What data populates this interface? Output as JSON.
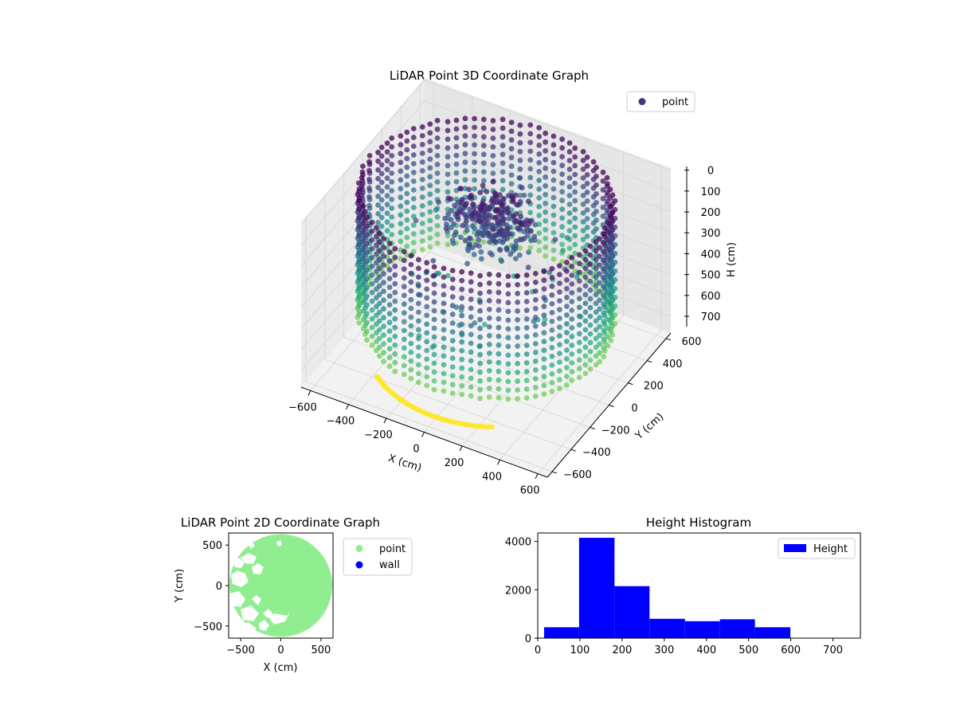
{
  "chart_data": [
    {
      "type": "scatter",
      "projection": "3d",
      "title": "LiDAR Point 3D Coordinate Graph",
      "xlabel": "X (cm)",
      "ylabel": "Y (cm)",
      "zlabel": "H (cm)",
      "xlim": [
        -650,
        650
      ],
      "ylim": [
        -650,
        650
      ],
      "zlim": [
        780,
        -10
      ],
      "z_inverted": true,
      "x_ticks": [
        "−600",
        "−400",
        "−200",
        "0",
        "200",
        "400",
        "600"
      ],
      "y_ticks": [
        "−600",
        "−400",
        "−200",
        "0",
        "200",
        "400",
        "600"
      ],
      "z_ticks": [
        "0",
        "100",
        "200",
        "300",
        "400",
        "500",
        "600",
        "700"
      ],
      "legend": [
        "point"
      ],
      "legend_position": "top-right",
      "colormap": "viridis",
      "grid": true,
      "structure": {
        "outer_wall_radius": 600,
        "wall_height_range": [
          0,
          600
        ],
        "floor_arc_height": 750,
        "inner_cluster_center": [
          0,
          50
        ],
        "inner_cluster_height": [
          50,
          250
        ]
      },
      "colors": {
        "legend_marker": "#46327e"
      }
    },
    {
      "type": "scatter",
      "title": "LiDAR Point 2D Coordinate Graph",
      "xlabel": "X (cm)",
      "ylabel": "Y (cm)",
      "xlim": [
        -650,
        650
      ],
      "ylim": [
        -650,
        650
      ],
      "x_ticks": [
        "−500",
        "0",
        "500"
      ],
      "y_ticks": [
        "−500",
        "0",
        "500"
      ],
      "series": [
        {
          "name": "point",
          "color": "#90ee90"
        },
        {
          "name": "wall",
          "color": "#0000ff"
        }
      ],
      "disk_radius": 640,
      "legend_position": "outside-right"
    },
    {
      "type": "bar",
      "title": "Height Histogram",
      "xlabel": "",
      "ylabel": "",
      "bin_edges": [
        15,
        98,
        182,
        265,
        349,
        432,
        515,
        599
      ],
      "values": [
        450,
        4150,
        2150,
        800,
        700,
        780,
        450
      ],
      "xlim": [
        0,
        765
      ],
      "ylim": [
        0,
        4350
      ],
      "x_ticks": [
        0,
        100,
        200,
        300,
        400,
        500,
        600,
        700
      ],
      "y_ticks": [
        0,
        2000,
        4000
      ],
      "legend": [
        "Height"
      ],
      "legend_position": "top-right",
      "color": "#0000ff"
    }
  ]
}
